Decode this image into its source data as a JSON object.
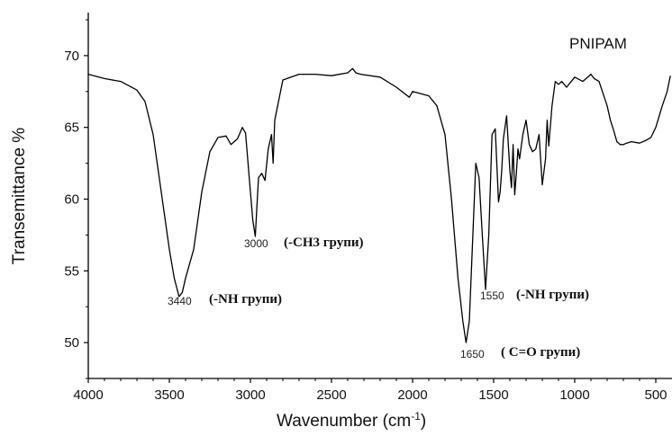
{
  "chart_data": {
    "type": "line",
    "title": "",
    "xlabel": "Wavenumber (cm",
    "xlabel_sup": "-1",
    "xlabel_end": ")",
    "ylabel": "Transemittance %",
    "xlim": [
      4000,
      400
    ],
    "ylim": [
      47.5,
      73
    ],
    "x_ticks": [
      4000,
      3500,
      3000,
      2500,
      2000,
      1500,
      1000,
      500
    ],
    "y_ticks": [
      50,
      55,
      60,
      65,
      70
    ],
    "x_reversed": true,
    "grid": false,
    "line_color": "#000000",
    "series": [
      {
        "name": "PNIPAM",
        "x": [
          4000,
          3900,
          3800,
          3700,
          3650,
          3600,
          3550,
          3500,
          3470,
          3440,
          3420,
          3400,
          3350,
          3300,
          3250,
          3200,
          3150,
          3120,
          3080,
          3050,
          3030,
          3000,
          2985,
          2970,
          2960,
          2950,
          2930,
          2910,
          2890,
          2870,
          2860,
          2850,
          2800,
          2700,
          2600,
          2500,
          2400,
          2370,
          2350,
          2320,
          2200,
          2100,
          2020,
          2000,
          1900,
          1850,
          1800,
          1760,
          1720,
          1690,
          1670,
          1650,
          1630,
          1610,
          1590,
          1570,
          1550,
          1530,
          1510,
          1490,
          1470,
          1460,
          1450,
          1440,
          1420,
          1400,
          1390,
          1380,
          1370,
          1360,
          1350,
          1340,
          1320,
          1300,
          1280,
          1260,
          1240,
          1220,
          1200,
          1180,
          1170,
          1160,
          1140,
          1120,
          1100,
          1080,
          1050,
          1000,
          950,
          900,
          880,
          850,
          800,
          780,
          760,
          740,
          720,
          700,
          680,
          650,
          600,
          560,
          530,
          500,
          460,
          430,
          410
        ],
        "y": [
          68.7,
          68.4,
          68.2,
          67.6,
          66.8,
          64.5,
          60.5,
          56.5,
          54.5,
          53.2,
          53.5,
          54.5,
          56.5,
          60.5,
          63.3,
          64.3,
          64.4,
          63.8,
          64.2,
          65.0,
          64.6,
          60.5,
          58.5,
          57.4,
          59.5,
          61.5,
          61.8,
          61.3,
          63.5,
          64.5,
          62.5,
          65.5,
          68.3,
          68.7,
          68.7,
          68.6,
          68.8,
          69.1,
          68.8,
          68.7,
          68.5,
          67.8,
          67.1,
          67.5,
          67.2,
          66.5,
          64.5,
          60.0,
          54.5,
          51.5,
          50.0,
          51.5,
          57.0,
          62.5,
          61.5,
          57.5,
          53.7,
          57.5,
          64.5,
          64.9,
          59.8,
          60.5,
          62.0,
          64.2,
          65.8,
          62.0,
          60.8,
          63.8,
          60.3,
          61.8,
          63.5,
          62.8,
          64.5,
          65.5,
          63.8,
          63.3,
          63.5,
          64.5,
          61.0,
          62.8,
          65.5,
          63.7,
          66.5,
          68.2,
          68.0,
          68.2,
          67.8,
          68.5,
          68.2,
          68.7,
          68.4,
          68.2,
          66.5,
          65.5,
          64.8,
          64.0,
          63.8,
          63.8,
          63.9,
          64.0,
          63.9,
          64.1,
          64.3,
          65.0,
          66.5,
          67.5,
          68.6
        ]
      }
    ],
    "annotations": [
      {
        "number": "3440",
        "text": "(-NH групи)"
      },
      {
        "number": "3000",
        "text": "(-CH3 групи)"
      },
      {
        "number": "1550",
        "text": "(-NH групи)"
      },
      {
        "number": "1650",
        "text": "( C=O групи)"
      }
    ]
  }
}
